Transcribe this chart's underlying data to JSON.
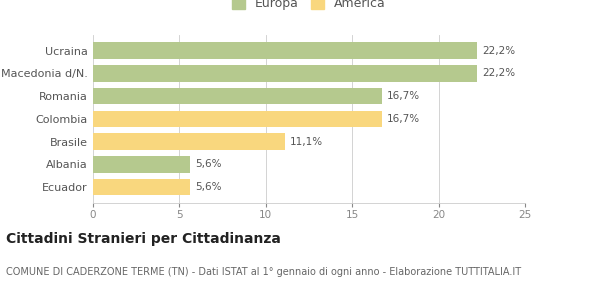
{
  "categories": [
    "Ecuador",
    "Albania",
    "Brasile",
    "Colombia",
    "Romania",
    "Macedonia d/N.",
    "Ucraina"
  ],
  "values": [
    5.6,
    5.6,
    11.1,
    16.7,
    16.7,
    22.2,
    22.2
  ],
  "colors": [
    "#f9d77e",
    "#b5c98e",
    "#f9d77e",
    "#f9d77e",
    "#b5c98e",
    "#b5c98e",
    "#b5c98e"
  ],
  "labels": [
    "5,6%",
    "5,6%",
    "11,1%",
    "16,7%",
    "16,7%",
    "22,2%",
    "22,2%"
  ],
  "legend_labels": [
    "Europa",
    "America"
  ],
  "legend_colors": [
    "#b5c98e",
    "#f9d77e"
  ],
  "xlim": [
    0,
    25
  ],
  "xticks": [
    0,
    5,
    10,
    15,
    20,
    25
  ],
  "title": "Cittadini Stranieri per Cittadinanza",
  "subtitle": "COMUNE DI CADERZONE TERME (TN) - Dati ISTAT al 1° gennaio di ogni anno - Elaborazione TUTTITALIA.IT",
  "background_color": "#ffffff",
  "bar_edge_color": "none",
  "grid_color": "#cccccc",
  "label_fontsize": 7.5,
  "tick_fontsize": 7.5,
  "ytick_fontsize": 8,
  "title_fontsize": 10,
  "subtitle_fontsize": 7,
  "bar_height": 0.72
}
